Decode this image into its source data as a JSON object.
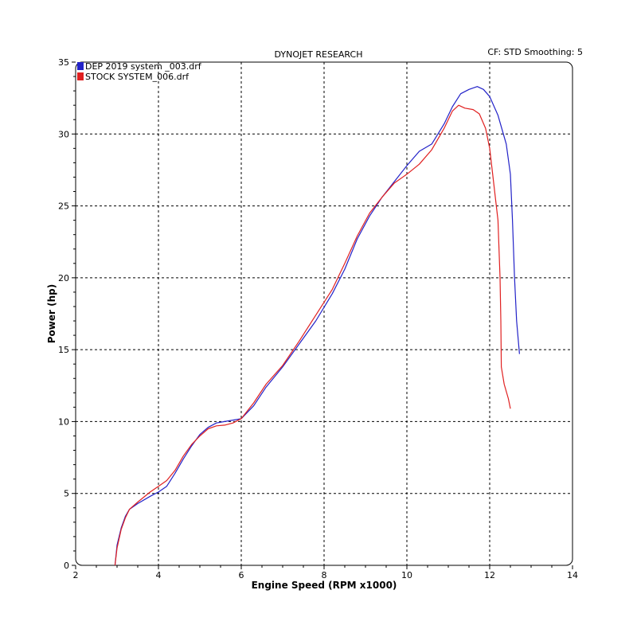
{
  "header": {
    "title": "DYNOJET RESEARCH",
    "settings": "CF: STD  Smoothing: 5"
  },
  "chart_data": {
    "type": "line",
    "title": "DYNOJET RESEARCH",
    "xlabel": "Engine Speed (RPM x1000)",
    "ylabel": "Power (hp)",
    "xlim": [
      2,
      14
    ],
    "ylim": [
      0,
      35
    ],
    "xticks": [
      "2",
      "4",
      "6",
      "8",
      "10",
      "12",
      "14"
    ],
    "yticks": [
      "0",
      "5",
      "10",
      "15",
      "20",
      "25",
      "30",
      "35"
    ],
    "grid": true,
    "legend_position": "top-left",
    "series": [
      {
        "name": "DEP 2019 system _003.drf",
        "color": "#2222c8",
        "points": [
          [
            2.95,
            0
          ],
          [
            3.0,
            1.4
          ],
          [
            3.1,
            2.6
          ],
          [
            3.2,
            3.4
          ],
          [
            3.3,
            3.9
          ],
          [
            3.5,
            4.3
          ],
          [
            3.8,
            4.8
          ],
          [
            4.0,
            5.1
          ],
          [
            4.2,
            5.5
          ],
          [
            4.4,
            6.4
          ],
          [
            4.6,
            7.4
          ],
          [
            4.8,
            8.3
          ],
          [
            5.0,
            9.1
          ],
          [
            5.2,
            9.6
          ],
          [
            5.4,
            9.9
          ],
          [
            5.6,
            10.0
          ],
          [
            5.8,
            10.1
          ],
          [
            6.0,
            10.2
          ],
          [
            6.3,
            11.1
          ],
          [
            6.6,
            12.4
          ],
          [
            7.0,
            13.8
          ],
          [
            7.4,
            15.4
          ],
          [
            7.8,
            17.0
          ],
          [
            8.2,
            18.9
          ],
          [
            8.5,
            20.6
          ],
          [
            8.8,
            22.7
          ],
          [
            9.1,
            24.3
          ],
          [
            9.4,
            25.6
          ],
          [
            9.7,
            26.7
          ],
          [
            10.0,
            27.8
          ],
          [
            10.3,
            28.8
          ],
          [
            10.6,
            29.3
          ],
          [
            10.9,
            30.7
          ],
          [
            11.1,
            31.9
          ],
          [
            11.3,
            32.8
          ],
          [
            11.5,
            33.1
          ],
          [
            11.7,
            33.3
          ],
          [
            11.85,
            33.1
          ],
          [
            12.0,
            32.6
          ],
          [
            12.2,
            31.3
          ],
          [
            12.4,
            29.3
          ],
          [
            12.5,
            27.2
          ],
          [
            12.55,
            24.0
          ],
          [
            12.6,
            20.0
          ],
          [
            12.65,
            17.0
          ],
          [
            12.72,
            14.7
          ]
        ]
      },
      {
        "name": "STOCK SYSTEM_006.drf",
        "color": "#e02020",
        "points": [
          [
            2.95,
            0
          ],
          [
            3.0,
            1.2
          ],
          [
            3.1,
            2.5
          ],
          [
            3.2,
            3.3
          ],
          [
            3.3,
            3.9
          ],
          [
            3.5,
            4.4
          ],
          [
            3.8,
            5.1
          ],
          [
            4.0,
            5.5
          ],
          [
            4.2,
            5.9
          ],
          [
            4.4,
            6.6
          ],
          [
            4.6,
            7.6
          ],
          [
            4.8,
            8.4
          ],
          [
            5.0,
            9.0
          ],
          [
            5.2,
            9.5
          ],
          [
            5.4,
            9.7
          ],
          [
            5.6,
            9.75
          ],
          [
            5.8,
            9.9
          ],
          [
            6.0,
            10.2
          ],
          [
            6.3,
            11.3
          ],
          [
            6.6,
            12.6
          ],
          [
            7.0,
            13.9
          ],
          [
            7.4,
            15.6
          ],
          [
            7.8,
            17.4
          ],
          [
            8.2,
            19.2
          ],
          [
            8.5,
            21.0
          ],
          [
            8.8,
            22.9
          ],
          [
            9.1,
            24.5
          ],
          [
            9.4,
            25.6
          ],
          [
            9.7,
            26.6
          ],
          [
            10.0,
            27.2
          ],
          [
            10.3,
            27.9
          ],
          [
            10.6,
            28.9
          ],
          [
            10.9,
            30.4
          ],
          [
            11.1,
            31.6
          ],
          [
            11.25,
            32.0
          ],
          [
            11.4,
            31.8
          ],
          [
            11.6,
            31.7
          ],
          [
            11.75,
            31.4
          ],
          [
            11.9,
            30.4
          ],
          [
            12.0,
            29.0
          ],
          [
            12.1,
            26.5
          ],
          [
            12.2,
            24.0
          ],
          [
            12.25,
            20.0
          ],
          [
            12.27,
            17.0
          ],
          [
            12.28,
            13.8
          ],
          [
            12.35,
            12.6
          ],
          [
            12.45,
            11.6
          ],
          [
            12.5,
            10.9
          ]
        ]
      }
    ]
  }
}
